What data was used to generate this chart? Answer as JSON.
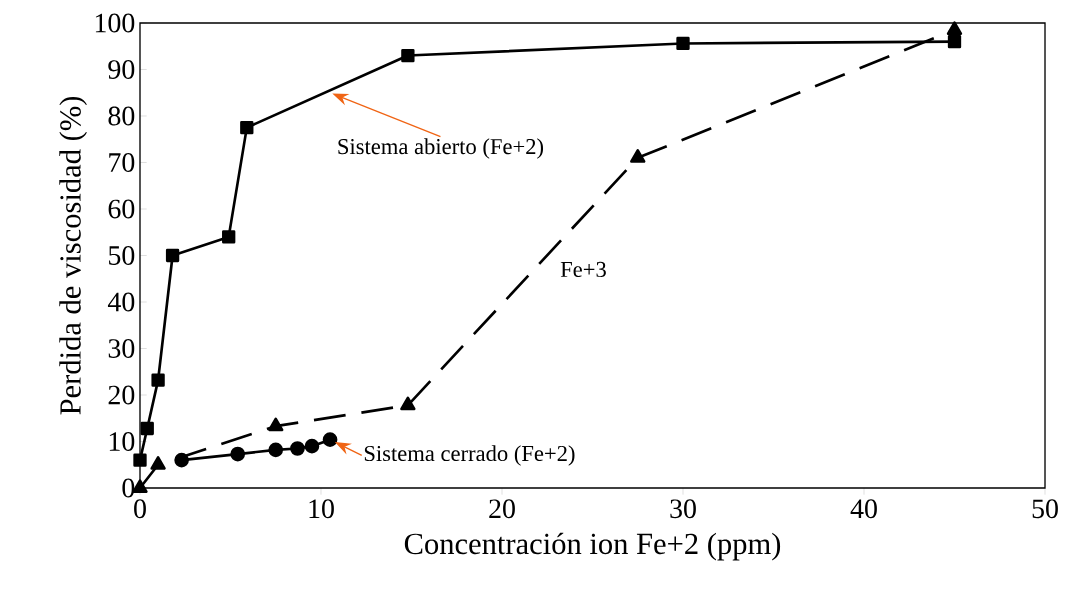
{
  "chart_data": {
    "type": "line",
    "xlabel": "Concentración ion Fe+2 (ppm)",
    "ylabel": "Perdida de viscosidad (%)",
    "xlim": [
      0,
      50
    ],
    "ylim": [
      0,
      100
    ],
    "xticks": [
      0,
      10,
      20,
      30,
      40,
      50
    ],
    "yticks": [
      0,
      10,
      20,
      30,
      40,
      50,
      60,
      70,
      80,
      90,
      100
    ],
    "grid": false,
    "legend": false,
    "series": [
      {
        "name": "Sistema abierto (Fe+2)",
        "color": "#000000",
        "marker": "square",
        "line_style": "solid",
        "x": [
          0,
          0.4,
          1,
          1.8,
          4.9,
          5.9,
          14.8,
          30,
          45
        ],
        "values": [
          6,
          12.8,
          23.2,
          50,
          54,
          77.5,
          93,
          95.6,
          96
        ]
      },
      {
        "name": "Fe+3",
        "color": "#000000",
        "marker": "triangle",
        "line_style": "dashed",
        "x": [
          0,
          1,
          7.5,
          14.8,
          27.5,
          45
        ],
        "values": [
          0,
          5,
          13.3,
          17.8,
          71,
          98.5
        ]
      },
      {
        "name": "Sistema cerrado (Fe+2)",
        "color": "#000000",
        "marker": "circle",
        "line_style": "solid",
        "x": [
          2.3,
          5.4,
          7.5,
          8.7,
          9.5,
          10.5
        ],
        "values": [
          6,
          7.3,
          8.2,
          8.5,
          9,
          10.4
        ]
      }
    ]
  }
}
